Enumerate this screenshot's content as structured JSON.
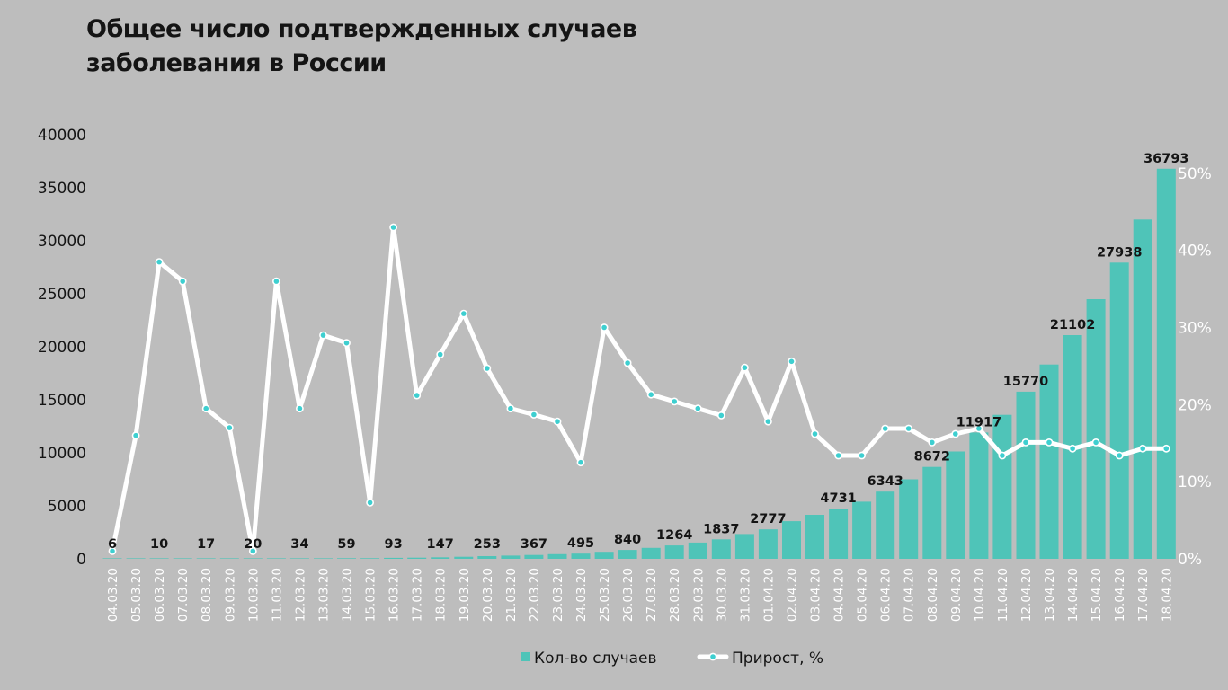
{
  "title_lines": [
    "Общее число подтвержденных случаев",
    "заболевания в России"
  ],
  "chart_data": {
    "type": "bar+line",
    "title": "Общее число подтвержденных случаев заболевания в России",
    "categories": [
      "04.03.20",
      "05.03.20",
      "06.03.20",
      "07.03.20",
      "08.03.20",
      "09.03.20",
      "10.03.20",
      "11.03.20",
      "12.03.20",
      "13.03.20",
      "14.03.20",
      "15.03.20",
      "16.03.20",
      "17.03.20",
      "18.03.20",
      "19.03.20",
      "20.03.20",
      "21.03.20",
      "22.03.20",
      "23.03.20",
      "24.03.20",
      "25.03.20",
      "26.03.20",
      "27.03.20",
      "28.03.20",
      "29.03.20",
      "30.03.20",
      "31.03.20",
      "01.04.20",
      "02.04.20",
      "03.04.20",
      "04.04.20",
      "05.04.20",
      "06.04.20",
      "07.04.20",
      "08.04.20",
      "09.04.20",
      "10.04.20",
      "11.04.20",
      "12.04.20",
      "13.04.20",
      "14.04.20",
      "15.04.20",
      "16.04.20",
      "17.04.20",
      "18.04.20"
    ],
    "series": [
      {
        "name": "Кол-во случаев",
        "type": "bar",
        "axis": "left",
        "color": "#4fc4b8",
        "values": [
          6,
          7,
          10,
          13,
          17,
          17,
          20,
          28,
          34,
          45,
          59,
          63,
          93,
          114,
          147,
          199,
          253,
          306,
          367,
          438,
          495,
          658,
          840,
          1036,
          1264,
          1534,
          1837,
          2337,
          2777,
          3548,
          4149,
          4731,
          5389,
          6343,
          7497,
          8672,
          10131,
          11917,
          13584,
          15770,
          18328,
          21102,
          24490,
          27938,
          32008,
          36793
        ],
        "labels_shown": [
          {
            "index": 0,
            "text": "6"
          },
          {
            "index": 2,
            "text": "10"
          },
          {
            "index": 4,
            "text": "17"
          },
          {
            "index": 6,
            "text": "20"
          },
          {
            "index": 8,
            "text": "34"
          },
          {
            "index": 10,
            "text": "59"
          },
          {
            "index": 12,
            "text": "93"
          },
          {
            "index": 14,
            "text": "147"
          },
          {
            "index": 16,
            "text": "253"
          },
          {
            "index": 18,
            "text": "367"
          },
          {
            "index": 20,
            "text": "495"
          },
          {
            "index": 22,
            "text": "840"
          },
          {
            "index": 24,
            "text": "1264"
          },
          {
            "index": 26,
            "text": "1837"
          },
          {
            "index": 28,
            "text": "2777"
          },
          {
            "index": 31,
            "text": "4731"
          },
          {
            "index": 33,
            "text": "6343"
          },
          {
            "index": 35,
            "text": "8672"
          },
          {
            "index": 37,
            "text": "11917"
          },
          {
            "index": 39,
            "text": "15770"
          },
          {
            "index": 41,
            "text": "21102"
          },
          {
            "index": 43,
            "text": "27938"
          },
          {
            "index": 45,
            "text": "36793"
          }
        ]
      },
      {
        "name": "Прирост, %",
        "type": "line",
        "axis": "right",
        "color": "#ffffff",
        "marker_color": "#3ecfd0",
        "values": [
          1,
          16,
          38.5,
          36,
          19.5,
          17,
          1,
          36,
          19.5,
          29,
          28,
          7.3,
          43,
          21.2,
          26.5,
          31.8,
          24.7,
          19.5,
          18.7,
          17.8,
          12.5,
          30,
          25.4,
          21.3,
          20.4,
          19.5,
          18.6,
          24.8,
          17.8,
          25.6,
          16.2,
          13.4,
          13.4,
          16.9,
          16.9,
          15.1,
          16.2,
          16.9,
          13.4,
          15.1,
          15.1,
          14.3,
          15.1,
          13.4,
          14.3,
          14.3
        ]
      }
    ],
    "y_left": {
      "min": 0,
      "max": 40000,
      "ticks": [
        "0",
        "5000",
        "10000",
        "15000",
        "20000",
        "25000",
        "30000",
        "35000",
        "40000"
      ]
    },
    "y_right": {
      "min": 0,
      "max": 0.55,
      "ticks": [
        "0%",
        "10%",
        "20%",
        "30%",
        "40%",
        "50%"
      ]
    },
    "grid": false,
    "legend_position": "bottom"
  }
}
